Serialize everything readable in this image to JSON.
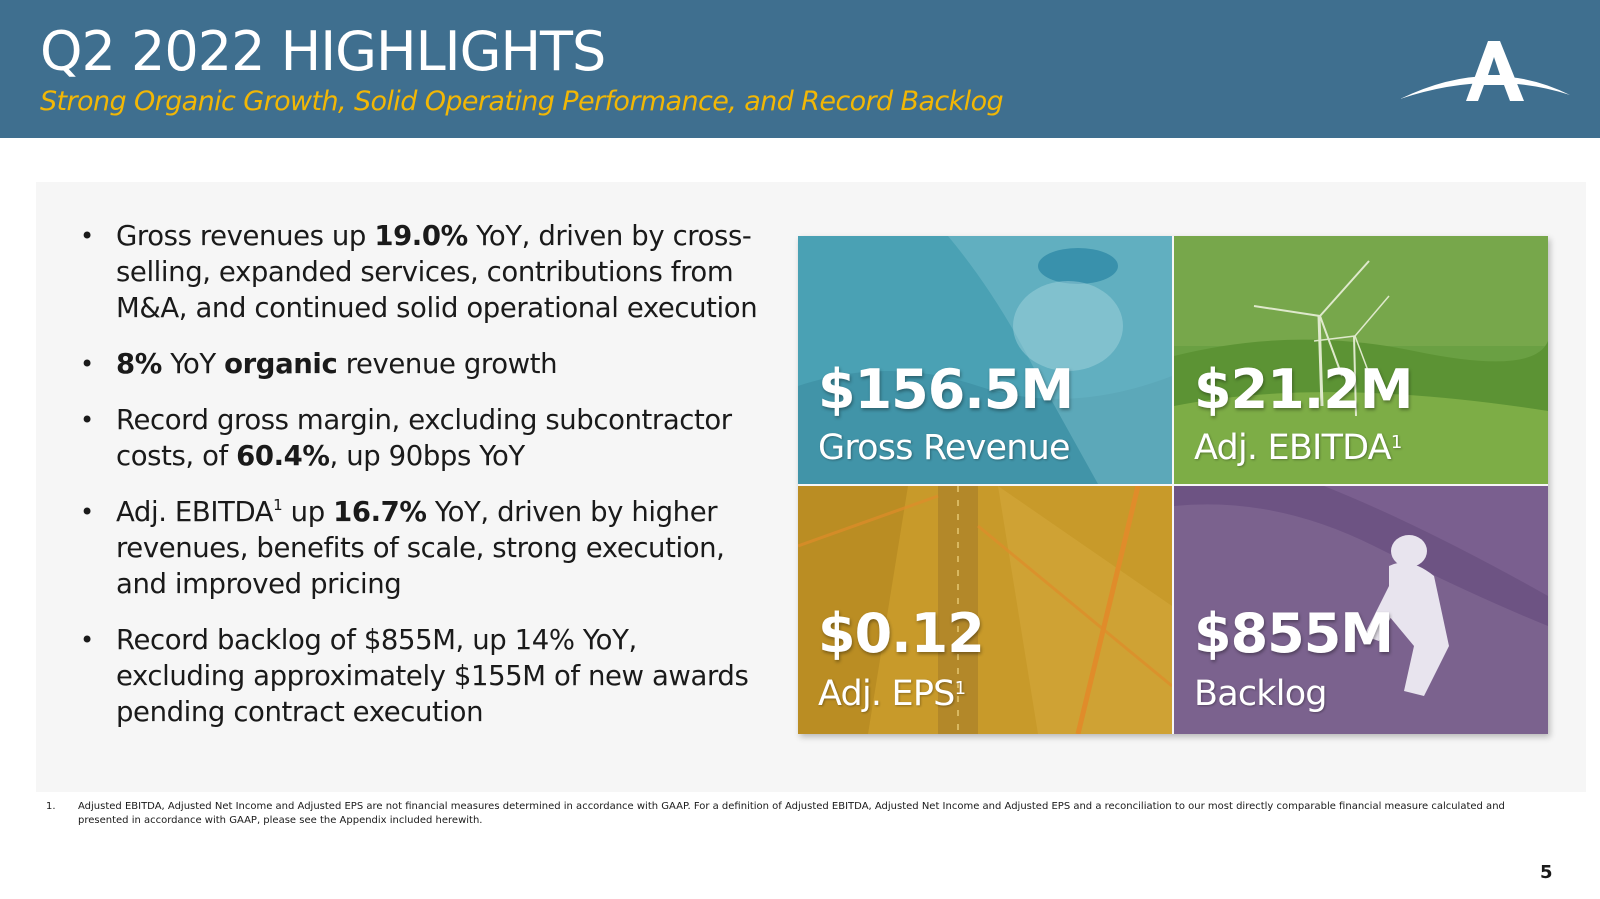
{
  "header": {
    "title": "Q2 2022 HIGHLIGHTS",
    "subtitle": "Strong Organic Growth, Solid Operating Performance, and Record Backlog",
    "logo_icon": "company-logo-a-swoosh"
  },
  "bullets": [
    {
      "parts": [
        {
          "text": "Gross revenues up ",
          "bold": false
        },
        {
          "text": "19.0%",
          "bold": true
        },
        {
          "text": " YoY, driven by cross-selling, expanded services, contributions from M&A, and continued solid operational execution",
          "bold": false
        }
      ]
    },
    {
      "parts": [
        {
          "text": "8%",
          "bold": true
        },
        {
          "text": " YoY ",
          "bold": false
        },
        {
          "text": "organic",
          "bold": true
        },
        {
          "text": " revenue growth",
          "bold": false
        }
      ]
    },
    {
      "parts": [
        {
          "text": "Record gross margin, excluding subcontractor costs, of ",
          "bold": false
        },
        {
          "text": "60.4%",
          "bold": true
        },
        {
          "text": ", up 90bps YoY",
          "bold": false
        }
      ]
    },
    {
      "parts": [
        {
          "text": "Adj. EBITDA",
          "bold": false
        },
        {
          "text": "1",
          "sup": true
        },
        {
          "text": " up ",
          "bold": false
        },
        {
          "text": "16.7%",
          "bold": true
        },
        {
          "text": " YoY, driven by higher revenues, benefits of scale, strong execution, and improved pricing",
          "bold": false
        }
      ]
    },
    {
      "parts": [
        {
          "text": "Record backlog of $855M, up 14% YoY, excluding approximately $155M of new awards pending contract execution",
          "bold": false
        }
      ]
    }
  ],
  "tiles": [
    {
      "value": "$156.5M",
      "label": "Gross Revenue",
      "sup": "",
      "color": "#4aa1b4",
      "scene": "gloved-hand-water-sample"
    },
    {
      "value": "$21.2M",
      "label": "Adj. EBITDA",
      "sup": "1",
      "color": "#5f9a3c",
      "scene": "wind-turbines-hills"
    },
    {
      "value": "$0.12",
      "label": "Adj. EPS",
      "sup": "1",
      "color": "#c89a2a",
      "scene": "bridge-aerial"
    },
    {
      "value": "$855M",
      "label": "Backlog",
      "sup": "",
      "color": "#75588c",
      "scene": "worker-hazmat-soil"
    }
  ],
  "footnote": {
    "number": "1.",
    "text": "Adjusted EBITDA, Adjusted Net Income and Adjusted EPS are not financial measures determined in accordance with GAAP. For a definition of Adjusted EBITDA, Adjusted Net Income and Adjusted EPS and a reconciliation to our most directly comparable financial measure calculated and presented in accordance with GAAP, please see the Appendix included herewith."
  },
  "page_number": "5"
}
